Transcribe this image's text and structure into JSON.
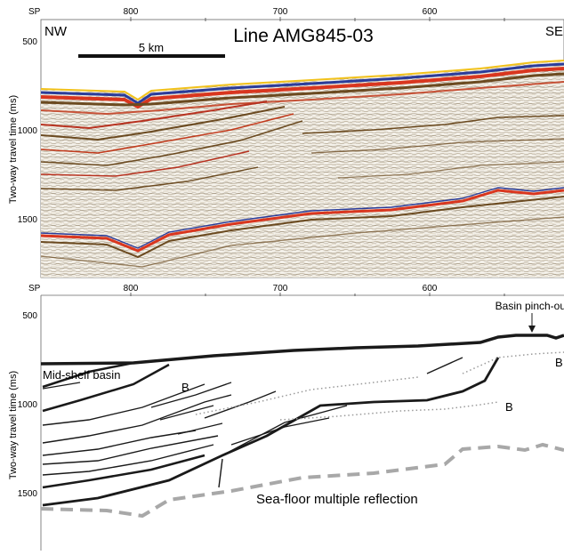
{
  "top_panel": {
    "title": "Line AMG845-03",
    "sp_label": "SP",
    "sp_ticks": [
      "800",
      "700",
      "600"
    ],
    "time_ticks": [
      "500",
      "1000",
      "1500"
    ],
    "y_axis_label": "Two-way travel time (ms)",
    "left_direction": "NW",
    "right_direction": "SE",
    "scale_bar_label": "5 km"
  },
  "bottom_panel": {
    "sp_label": "SP",
    "sp_ticks": [
      "800",
      "700",
      "600"
    ],
    "time_ticks": [
      "500",
      "1000",
      "1500"
    ],
    "y_axis_label": "Two-way travel time (ms)",
    "annotations": {
      "basin_pinch_out": "Basin pinch-out",
      "mid_shelf_basin": "Mid-shelf basin",
      "b_left": "B",
      "b_mid": "B",
      "b_right": "B",
      "multiple": "Sea-floor multiple reflection"
    }
  },
  "colors": {
    "seafloor_red": "#d9361f",
    "seafloor_blue": "#2b3c9a",
    "seafloor_yellow": "#f2c21b",
    "reflector_brown": "#6b4a20",
    "interpretation_line": "#1a1a1a",
    "dotted_gray": "#9a9a9a",
    "multiple_gray": "#a8a8a8"
  }
}
